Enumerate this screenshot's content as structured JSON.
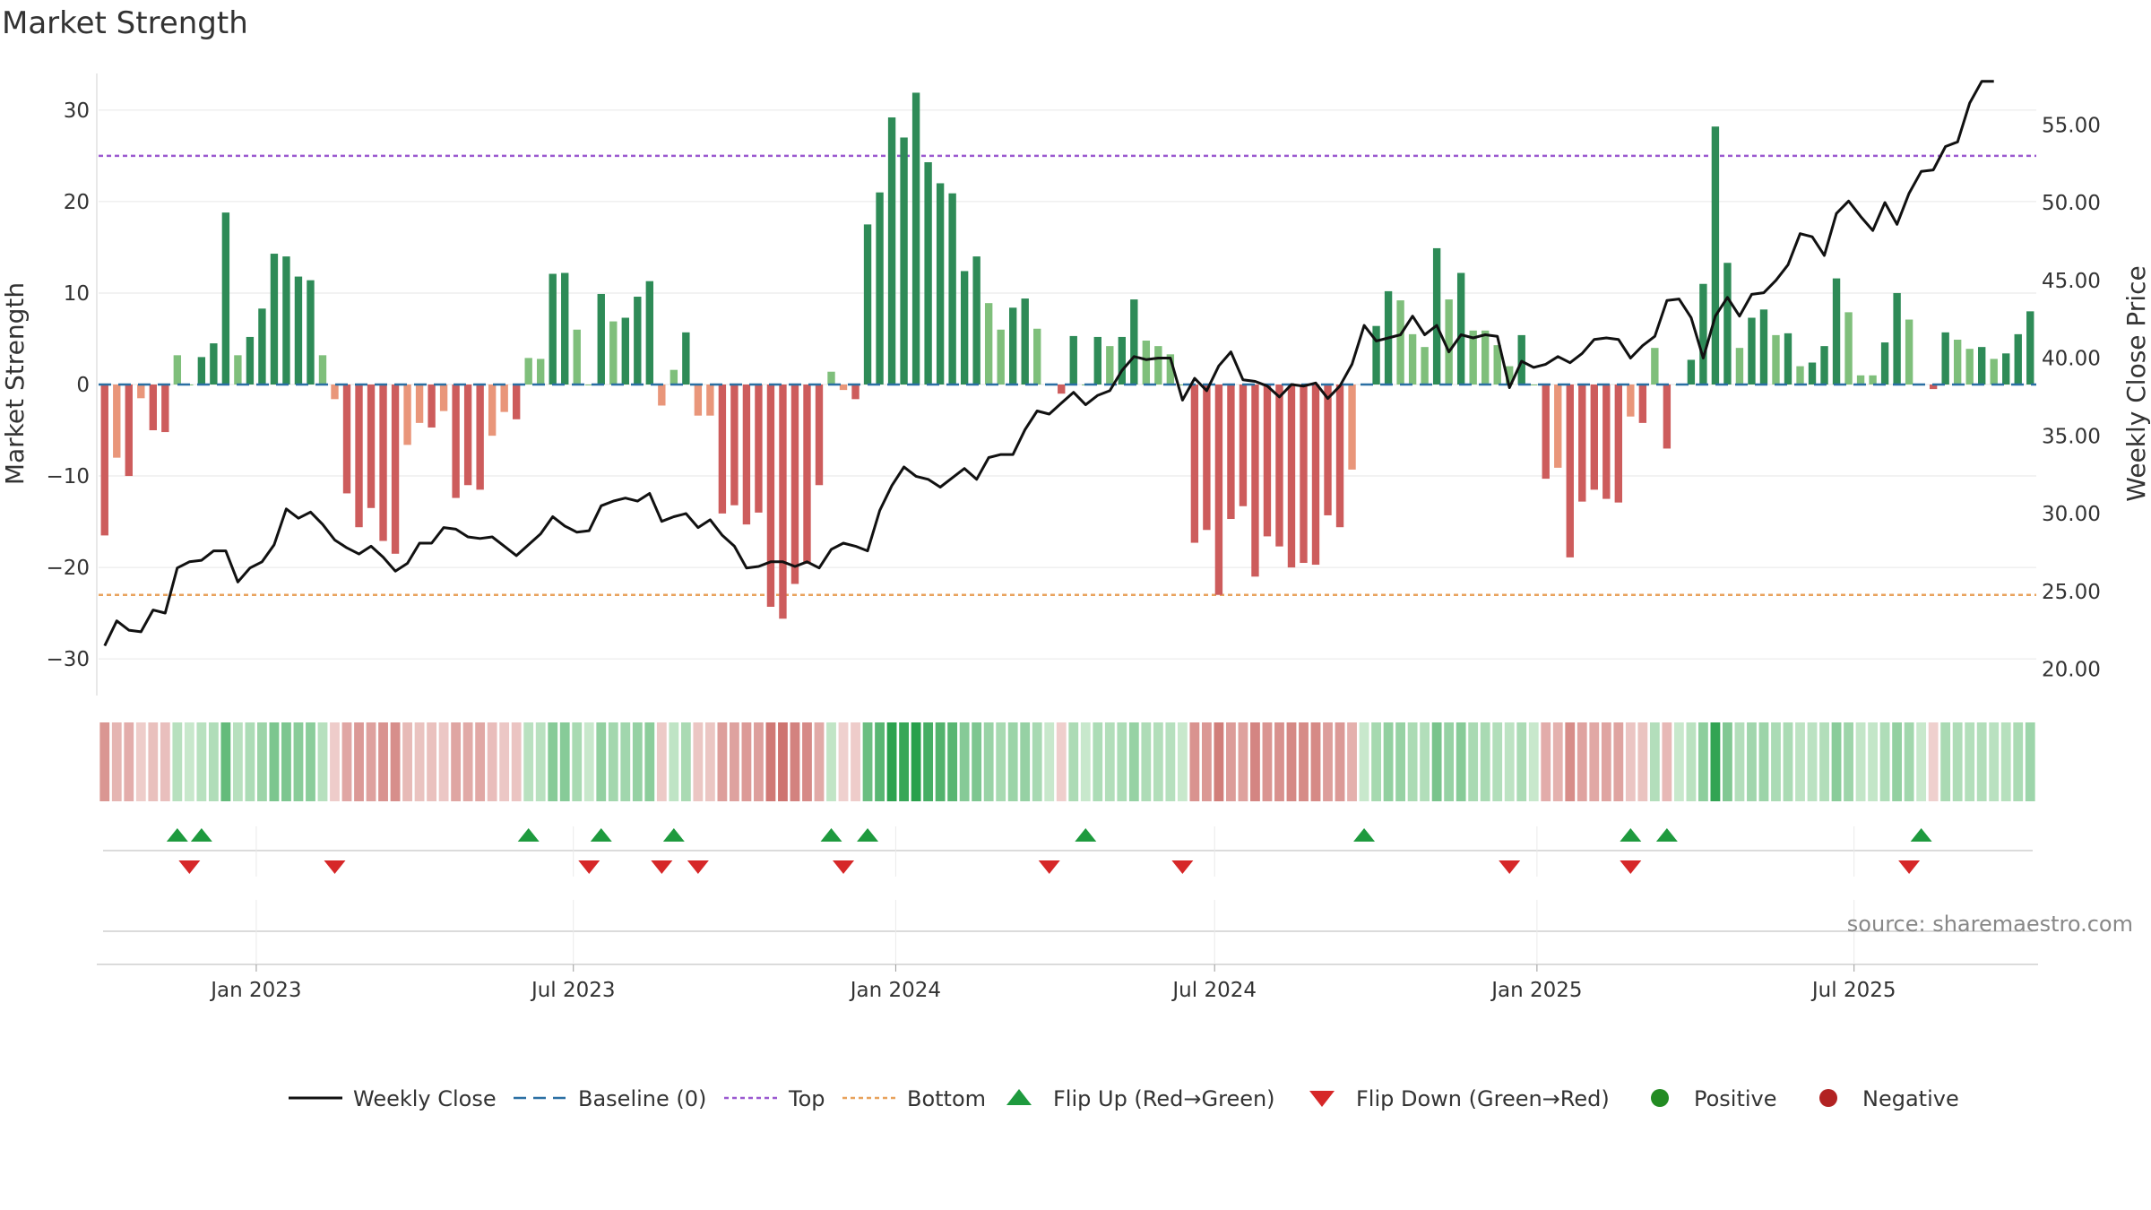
{
  "chart_data": {
    "type": "bar+line",
    "title": "Market Strength",
    "ylabel_left": "Market Strength",
    "ylabel_right": "Weekly Close Price",
    "ylim_left": [
      -34,
      34
    ],
    "ylim_right": [
      18.3,
      58.3
    ],
    "left_ticks": [
      -30,
      -20,
      -10,
      0,
      10,
      20,
      30
    ],
    "left_tick_labels": [
      "−30",
      "−20",
      "−10",
      "0",
      "10",
      "20",
      "30"
    ],
    "right_ticks": [
      20,
      25,
      30,
      35,
      40,
      45,
      50,
      55
    ],
    "right_tick_labels": [
      "20.00",
      "25.00",
      "30.00",
      "35.00",
      "40.00",
      "45.00",
      "50.00",
      "55.00"
    ],
    "x_start": "2022-10-03",
    "x_end": "2025-10-13",
    "x_ticks": [
      "2023-01-01",
      "2023-07-01",
      "2024-01-01",
      "2024-07-01",
      "2025-01-01",
      "2025-07-01"
    ],
    "x_tick_labels": [
      "Jan 2023",
      "Jul 2023",
      "Jan 2024",
      "Jul 2024",
      "Jan 2025",
      "Jul 2025"
    ],
    "top_threshold": 25,
    "bottom_threshold": -23,
    "baseline": 0,
    "market_strength": [
      -16.5,
      -8,
      -10,
      -1.5,
      -5,
      -5.2,
      3.2,
      0,
      3,
      4.5,
      18.8,
      3.2,
      5.2,
      8.3,
      14.3,
      14,
      11.8,
      11.4,
      3.2,
      -1.6,
      -11.9,
      -15.6,
      -13.5,
      -17.1,
      -18.5,
      -6.6,
      -4.2,
      -4.7,
      -2.9,
      -12.4,
      -11,
      -11.5,
      -5.6,
      -3,
      -3.8,
      2.9,
      2.8,
      12.1,
      12.2,
      6,
      0,
      9.9,
      6.9,
      7.3,
      9.6,
      11.3,
      -2.3,
      1.6,
      5.7,
      -3.4,
      -3.4,
      -14.1,
      -13.2,
      -15.3,
      -14,
      -24.3,
      -25.6,
      -21.8,
      -19.6,
      -11,
      1.4,
      -0.6,
      -1.6,
      17.5,
      21,
      29.2,
      27,
      31.9,
      24.3,
      22,
      20.9,
      12.4,
      14,
      8.9,
      6,
      8.4,
      9.4,
      6.1,
      0,
      -1,
      5.3,
      0,
      5.2,
      4.2,
      5.2,
      9.3,
      4.8,
      4.2,
      3.3,
      0,
      -17.3,
      -15.9,
      -23,
      -14.7,
      -13.3,
      -21,
      -16.6,
      -17.7,
      -20,
      -19.5,
      -19.7,
      -14.3,
      -15.6,
      -9.3,
      0,
      6.4,
      10.2,
      9.2,
      5.5,
      4.1,
      14.9,
      9.3,
      12.2,
      5.9,
      5.9,
      4.3,
      2,
      5.4,
      0,
      -10.3,
      -9.1,
      -18.9,
      -12.8,
      -11.5,
      -12.5,
      -12.9,
      -3.5,
      -4.2,
      4,
      -7,
      0,
      2.7,
      11,
      28.2,
      13.3,
      4,
      7.3,
      8.2,
      5.4,
      5.6,
      2,
      2.4,
      4.2,
      11.6,
      7.9,
      1,
      1,
      4.6,
      10,
      7.1,
      0,
      -0.5,
      5.7,
      4.9,
      3.9,
      4.1,
      2.8,
      3.4,
      5.5,
      8
    ],
    "weekly_close": [
      21.5,
      23.1,
      22.5,
      22.4,
      23.8,
      23.6,
      26.5,
      26.9,
      27,
      27.6,
      27.6,
      25.6,
      26.5,
      26.9,
      28,
      30.3,
      29.7,
      30.1,
      29.3,
      28.3,
      27.8,
      27.4,
      27.9,
      27.2,
      26.3,
      26.8,
      28.1,
      28.1,
      29.1,
      29,
      28.5,
      28.4,
      28.5,
      27.9,
      27.3,
      28,
      28.7,
      29.8,
      29.2,
      28.8,
      28.9,
      30.5,
      30.8,
      31,
      30.8,
      31.3,
      29.5,
      29.8,
      30,
      29.1,
      29.6,
      28.6,
      27.9,
      26.5,
      26.6,
      26.9,
      26.9,
      26.6,
      26.9,
      26.5,
      27.7,
      28.1,
      27.9,
      27.6,
      30.2,
      31.8,
      33,
      32.4,
      32.2,
      31.7,
      32.3,
      32.9,
      32.2,
      33.6,
      33.8,
      33.8,
      35.4,
      36.6,
      36.4,
      37.1,
      37.8,
      37,
      37.6,
      37.9,
      39.2,
      40.1,
      39.9,
      40,
      40,
      37.3,
      38.7,
      37.9,
      39.5,
      40.4,
      38.6,
      38.5,
      38.2,
      37.5,
      38.3,
      38.2,
      38.4,
      37.4,
      38.2,
      39.6,
      42.1,
      41.1,
      41.3,
      41.5,
      42.7,
      41.5,
      42.1,
      40.4,
      41.5,
      41.3,
      41.5,
      41.4,
      38.1,
      39.8,
      39.4,
      39.6,
      40.1,
      39.7,
      40.3,
      41.2,
      41.3,
      41.2,
      40,
      40.8,
      41.4,
      43.7,
      43.8,
      42.6,
      40,
      42.7,
      43.9,
      42.7,
      44.1,
      44.2,
      45,
      46,
      48,
      47.8,
      46.6,
      49.3,
      50.1,
      49.1,
      48.2,
      50,
      48.6,
      50.6,
      52,
      52.1,
      53.6,
      53.9,
      56.4,
      57.8,
      57.8
    ],
    "flip_up_weeks": [
      6,
      8,
      35,
      41,
      47,
      60,
      63,
      81,
      104,
      126,
      129,
      150
    ],
    "flip_down_weeks": [
      7,
      19,
      40,
      46,
      49,
      61,
      78,
      89,
      116,
      126,
      149
    ],
    "legend": [
      "Weekly Close",
      "Baseline (0)",
      "Top",
      "Bottom",
      "Flip Up (Red→Green)",
      "Flip Down (Green→Red)",
      "Positive",
      "Negative"
    ],
    "colors": {
      "close_line": "#111111",
      "baseline": "#2a6fa3",
      "top": "#9b59d0",
      "bottom": "#e8a25c",
      "strong_green": "#2e8b57",
      "light_green": "#7fbf7b",
      "strong_red": "#cd5c5c",
      "light_red": "#e9967a",
      "flip_up": "#1e9a3e",
      "flip_down": "#d62728",
      "positive": "#228b22",
      "negative": "#b22222"
    }
  },
  "source_text": "source: sharemaestro.com"
}
